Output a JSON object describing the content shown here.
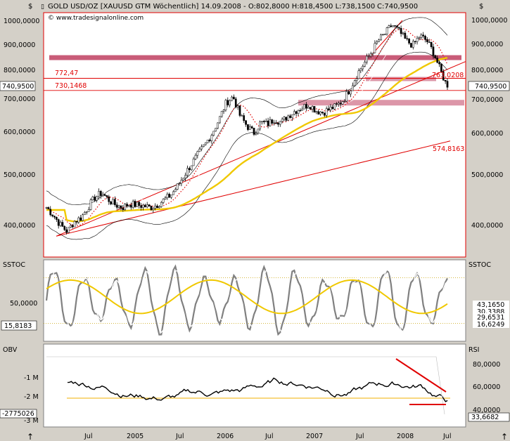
{
  "header": {
    "currency_symbol": "$",
    "title": "GOLD USD/OZ [XAUUSD GTM  Wöchentlich] 14.09.2008 - O:802,8000 H:818,4500 L:738,1500",
    "close_label": "C:740,9500",
    "source": "www.tradesignalonline.com"
  },
  "colors": {
    "panel_bg": "#ffffff",
    "frame": "#d4d0c8",
    "price": "#000000",
    "ma_yellow": "#f0c800",
    "resistance_band": "#c04060",
    "trend_red": "#e00000",
    "stoch_gray": "#808080",
    "stoch_white": "#ffffff"
  },
  "x_axis": {
    "labels": [
      "Jul",
      "2005",
      "Jul",
      "2006",
      "Jul",
      "2007",
      "Jul",
      "2008",
      "Jul"
    ]
  },
  "panels": {
    "price": {
      "y_ticks_left": [
        "1000,0000",
        "900,0000",
        "800,0000",
        "700,0000",
        "600,0000",
        "500,0000",
        "400,0000"
      ],
      "y_ticks_right": [
        "1000,0000",
        "900,0000",
        "800,0000",
        "700,0000",
        "600,0000",
        "500,0000",
        "400,0000"
      ],
      "last_value_left": "740,9500",
      "last_value_right": "740,9500",
      "level_labels": [
        "772,47",
        "730,1468"
      ],
      "trendline_labels": [
        "763,0208",
        "574,8163"
      ]
    },
    "sstoc": {
      "label_left": "SSTOC",
      "label_right": "SSTOC",
      "y_tick_left": "50,0000",
      "value_left": "15,8183",
      "values_right": [
        "43,1650",
        "30,3388",
        "29,6531",
        "16,6249"
      ]
    },
    "obv": {
      "label_left": "OBV",
      "label_right": "RSI",
      "y_ticks_left": [
        "-1 M",
        "-2 M",
        "-3 M"
      ],
      "value_left": "-2775026",
      "y_ticks_right": [
        "80,0000",
        "60,0000",
        "40,0000"
      ],
      "value_right": "33,6682"
    }
  },
  "chart_data": [
    {
      "type": "candlestick",
      "title": "GOLD USD/OZ [XAUUSD GTM  Wöchentlich] 14.09.2008",
      "last_close": 740.95,
      "open": 802.8,
      "high": 818.45,
      "low": 738.15,
      "ylim": [
        340,
        1040
      ],
      "log_scale": true,
      "x_labels": [
        "Jul",
        "2005",
        "Jul",
        "2006",
        "Jul",
        "2007",
        "Jul",
        "2008",
        "Jul"
      ],
      "close_series": [
        425,
        410,
        392,
        380,
        398,
        405,
        425,
        445,
        455,
        440,
        430,
        425,
        432,
        430,
        428,
        425,
        430,
        440,
        450,
        470,
        495,
        520,
        545,
        570,
        600,
        640,
        690,
        710,
        650,
        620,
        600,
        630,
        625,
        640,
        630,
        650,
        665,
        675,
        685,
        665,
        660,
        670,
        680,
        700,
        740,
        790,
        830,
        870,
        920,
        950,
        990,
        960,
        920,
        900,
        940,
        920,
        870,
        800,
        740
      ],
      "horizontal_levels": [
        850,
        772.47,
        730.1468
      ],
      "trendline_values": [
        763.0208,
        574.8163
      ]
    },
    {
      "type": "line",
      "title": "SSTOC",
      "ylim": [
        0,
        100
      ],
      "last_values": [
        43.165,
        30.3388,
        29.6531,
        16.6249,
        15.8183
      ]
    },
    {
      "type": "line",
      "title": "OBV / RSI",
      "obv_last": -2775026,
      "rsi_last": 33.6682,
      "rsi_ticks": [
        80,
        60,
        40
      ]
    }
  ]
}
